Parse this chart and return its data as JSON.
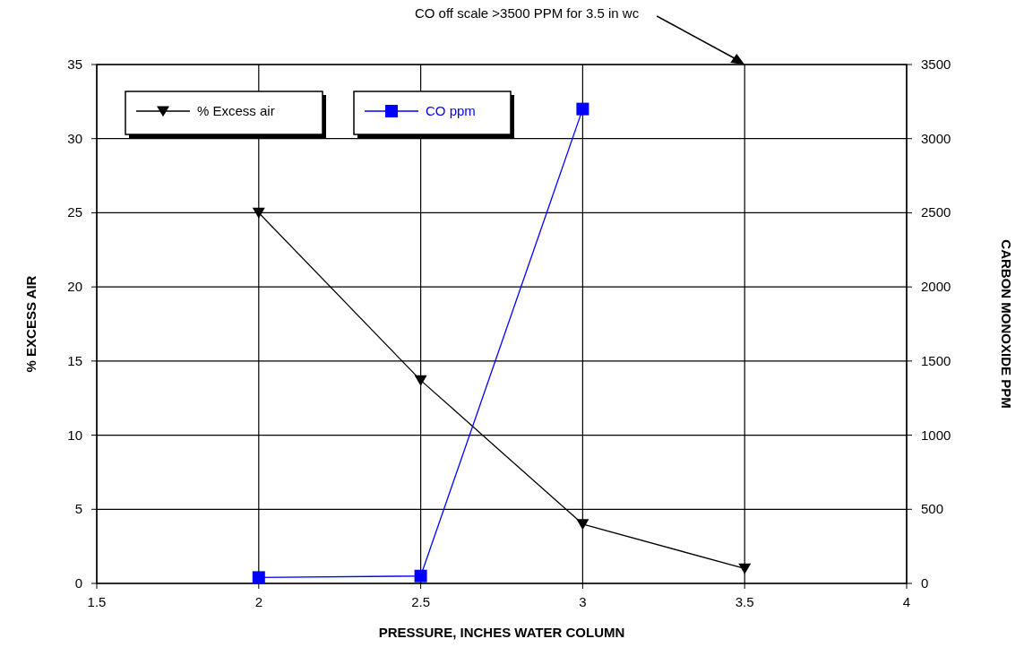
{
  "chart_data": {
    "type": "line",
    "xlabel": "PRESSURE, INCHES WATER COLUMN",
    "ylabel": "% EXCESS AIR",
    "y2label": "CARBON MONOXIDE PPM",
    "xlim": [
      1.5,
      4
    ],
    "xticks": [
      1.5,
      2,
      2.5,
      3,
      3.5,
      4
    ],
    "ylim": [
      0,
      35
    ],
    "yticks": [
      0,
      5,
      10,
      15,
      20,
      25,
      30,
      35
    ],
    "y2lim": [
      0,
      3500
    ],
    "y2ticks": [
      0,
      500,
      1000,
      1500,
      2000,
      2500,
      3000,
      3500
    ],
    "grid": true,
    "legend": "top left",
    "line_style": "solid",
    "series": [
      {
        "name": "% Excess air",
        "color": "#000000",
        "x": [
          2,
          2.5,
          3,
          3.5
        ],
        "values": [
          25,
          13.7,
          4,
          1
        ],
        "marker": "triangle"
      },
      {
        "name": "CO ppm",
        "color": "#0000ff",
        "x": [
          2,
          2.5,
          3
        ],
        "values": [
          40,
          50,
          3200
        ],
        "marker": "square",
        "axis": "y2"
      }
    ],
    "annotations": [
      "CO off scale >3500 PPM for 3.5 in wc"
    ]
  }
}
